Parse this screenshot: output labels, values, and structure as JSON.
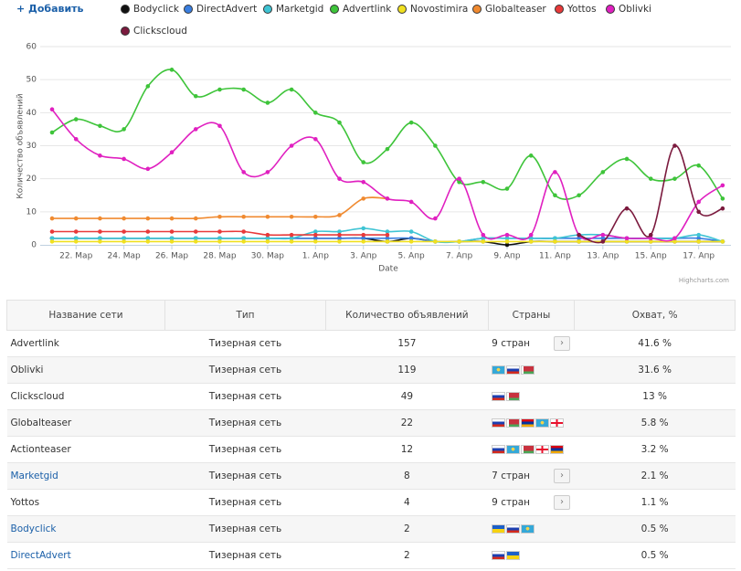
{
  "add_button": "+ Добавить",
  "chart_data": {
    "type": "line",
    "x_label": "Date",
    "y_label": "Количество объявлений",
    "credit": "Highcharts.com",
    "categories": [
      null,
      "22. Мар",
      null,
      "24. Мар",
      null,
      "26. Мар",
      null,
      "28. Мар",
      null,
      "30. Мар",
      null,
      "1. Апр",
      null,
      "3. Апр",
      null,
      "5. Апр",
      null,
      "7. Апр",
      null,
      "9. Апр",
      null,
      "11. Апр",
      null,
      "13. Апр",
      null,
      "15. Апр",
      null,
      "17. Апр",
      null
    ],
    "ylim": [
      0,
      60
    ],
    "yticks": [
      0,
      10,
      20,
      30,
      40,
      50,
      60
    ],
    "grid": true,
    "series": [
      {
        "name": "Bodyclick",
        "color": "#111111",
        "values": [
          2,
          2,
          2,
          2,
          2,
          2,
          2,
          2,
          2,
          2,
          2,
          2,
          2,
          2,
          1,
          2,
          1,
          1,
          1,
          0,
          1,
          1,
          1,
          1,
          1,
          1,
          1,
          1,
          1
        ]
      },
      {
        "name": "DirectAdvert",
        "color": "#3a7fe0",
        "values": [
          2,
          2,
          2,
          2,
          2,
          2,
          2,
          2,
          2,
          2,
          2,
          2,
          2,
          2,
          2,
          2,
          1,
          1,
          2,
          2,
          2,
          2,
          2,
          2,
          2,
          2,
          2,
          2,
          1
        ]
      },
      {
        "name": "Marketgid",
        "color": "#3fc4d4",
        "values": [
          2,
          2,
          2,
          2,
          2,
          2,
          2,
          2,
          2,
          2,
          2,
          4,
          4,
          5,
          4,
          4,
          1,
          1,
          2,
          2,
          2,
          2,
          3,
          3,
          2,
          2,
          2,
          3,
          1
        ]
      },
      {
        "name": "Advertlink",
        "color": "#3ec43a",
        "values": [
          34,
          38,
          36,
          35,
          48,
          53,
          45,
          47,
          47,
          43,
          47,
          40,
          37,
          25,
          29,
          37,
          30,
          19,
          19,
          17,
          27,
          15,
          15,
          22,
          26,
          20,
          20,
          24,
          14
        ]
      },
      {
        "name": "Novostimira",
        "color": "#f0e020",
        "values": [
          1,
          1,
          1,
          1,
          1,
          1,
          1,
          1,
          1,
          1,
          1,
          1,
          1,
          1,
          1,
          1,
          1,
          1,
          1,
          1,
          1,
          1,
          1,
          1,
          1,
          1,
          1,
          1,
          1
        ]
      },
      {
        "name": "Globalteaser",
        "color": "#f08a30",
        "values": [
          8,
          8,
          8,
          8,
          8,
          8,
          8,
          8.5,
          8.5,
          8.5,
          8.5,
          8.5,
          9,
          14,
          14,
          null,
          null,
          null,
          null,
          null,
          null,
          null,
          null,
          null,
          null,
          null,
          null,
          null,
          null
        ]
      },
      {
        "name": "Yottos",
        "color": "#e83a3a",
        "values": [
          4,
          4,
          4,
          4,
          4,
          4,
          4,
          4,
          4,
          3,
          3,
          3,
          3,
          3,
          3,
          null,
          null,
          null,
          null,
          null,
          null,
          null,
          null,
          null,
          null,
          null,
          null,
          null,
          null
        ]
      },
      {
        "name": "Oblivki",
        "color": "#e020c0",
        "values": [
          41,
          32,
          27,
          26,
          23,
          28,
          35,
          36,
          22,
          22,
          30,
          32,
          20,
          19,
          14,
          13,
          8,
          20,
          3,
          3,
          3,
          22,
          3,
          3,
          2,
          2,
          2,
          13,
          18
        ]
      },
      {
        "name": "Clickscloud",
        "color": "#7b1a3e",
        "values": [
          null,
          null,
          null,
          null,
          null,
          null,
          null,
          null,
          null,
          null,
          null,
          null,
          null,
          null,
          null,
          null,
          null,
          null,
          null,
          null,
          null,
          null,
          3,
          1,
          11,
          3,
          30,
          10,
          11
        ]
      }
    ]
  },
  "table": {
    "header": [
      "Название сети",
      "Тип",
      "Количество объявлений",
      "Страны",
      "Охват, %"
    ],
    "rows": [
      {
        "name": "Advertlink",
        "type": "Тизерная сеть",
        "count": 157,
        "countries": "9 стран",
        "coverage": "41.6 %"
      },
      {
        "name": "Oblivki",
        "type": "Тизерная сеть",
        "count": 119,
        "coverage": "31.6 %"
      },
      {
        "name": "Clickscloud",
        "type": "Тизерная сеть",
        "count": 49,
        "coverage": "13 %"
      },
      {
        "name": "Globalteaser",
        "type": "Тизерная сеть",
        "count": 22,
        "coverage": "5.8 %"
      },
      {
        "name": "Actionteaser",
        "type": "Тизерная сеть",
        "count": 12,
        "coverage": "3.2 %"
      },
      {
        "name": "Marketgid",
        "type": "Тизерная сеть",
        "count": 8,
        "countries": "7 стран",
        "coverage": "2.1 %"
      },
      {
        "name": "Yottos",
        "type": "Тизерная сеть",
        "count": 4,
        "countries": "9 стран",
        "coverage": "1.1 %"
      },
      {
        "name": "Bodyclick",
        "type": "Тизерная сеть",
        "count": 2,
        "coverage": "0.5 %"
      },
      {
        "name": "DirectAdvert",
        "type": "Тизерная сеть",
        "count": 2,
        "coverage": "0.5 %"
      }
    ]
  }
}
